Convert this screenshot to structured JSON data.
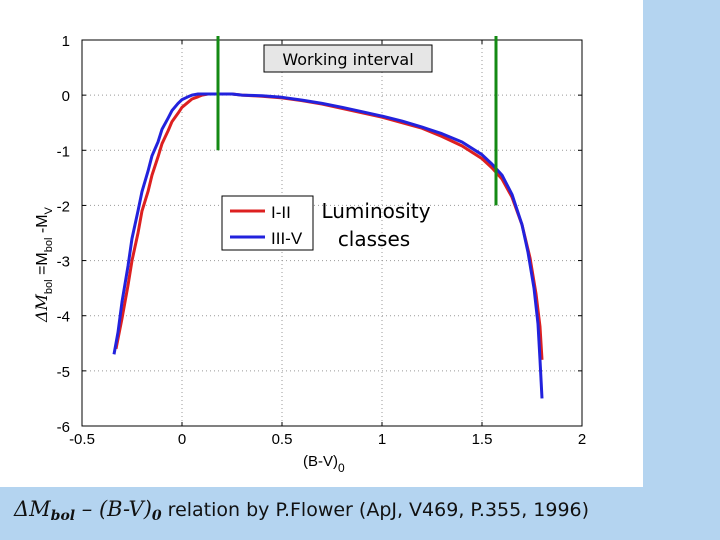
{
  "colors": {
    "background": "#b4d4f0",
    "plot_bg": "#ffffff",
    "series1": "#dd2020",
    "series2": "#2222dd",
    "marker_lines": "#148a14"
  },
  "caption": {
    "delta_m": "ΔM",
    "bol_sub": "bol",
    "dash_bv": " – (B-V)",
    "zero_sub": "0",
    "rest": "relation by P.Flower (ApJ, V469, P.355, 1996)"
  },
  "chart_data": {
    "type": "line",
    "ylabel_parts": {
      "delta": "ΔM",
      "bol1": "bol",
      "eq": " =M",
      "bol2": "bol",
      "minus": " -M",
      "v": "V"
    },
    "xlabel_parts": {
      "main": "(B-V)",
      "sub": "0"
    },
    "xlim": [
      -0.5,
      2
    ],
    "ylim": [
      -6,
      1
    ],
    "xticks": [
      -0.5,
      0,
      0.5,
      1,
      1.5,
      2
    ],
    "xtick_labels": [
      "-0.5",
      "0",
      "0.5",
      "1",
      "1.5",
      "2"
    ],
    "yticks": [
      1,
      0,
      -1,
      -2,
      -3,
      -4,
      -5,
      -6
    ],
    "ytick_labels": [
      "1",
      "0",
      "-1",
      "-2",
      "-3",
      "-4",
      "-5",
      "-6"
    ],
    "grid": "dotted",
    "annotations": {
      "working_interval": "Working interval",
      "luminosity1": "Luminosity",
      "luminosity2": "classes"
    },
    "vertical_lines": [
      {
        "x": 0.18,
        "y_from": -1,
        "y_to": 1
      },
      {
        "x": 1.57,
        "y_from": -2,
        "y_to": 1
      }
    ],
    "series": [
      {
        "name": "I-II",
        "color": "#dd2020",
        "x": [
          -0.33,
          -0.3,
          -0.27,
          -0.25,
          -0.22,
          -0.2,
          -0.17,
          -0.15,
          -0.12,
          -0.1,
          -0.07,
          -0.05,
          -0.02,
          0,
          0.03,
          0.05,
          0.08,
          0.1,
          0.13,
          0.15,
          0.18,
          0.2,
          0.25,
          0.3,
          0.4,
          0.5,
          0.6,
          0.7,
          0.8,
          0.9,
          1.0,
          1.1,
          1.2,
          1.3,
          1.4,
          1.5,
          1.55,
          1.6,
          1.65,
          1.7,
          1.74,
          1.77,
          1.79,
          1.8
        ],
        "y": [
          -4.6,
          -4.05,
          -3.45,
          -3.0,
          -2.5,
          -2.1,
          -1.75,
          -1.45,
          -1.12,
          -0.88,
          -0.65,
          -0.48,
          -0.33,
          -0.22,
          -0.13,
          -0.07,
          -0.03,
          0.0,
          0.02,
          0.02,
          0.02,
          0.02,
          0.02,
          0.0,
          -0.02,
          -0.05,
          -0.1,
          -0.16,
          -0.24,
          -0.32,
          -0.4,
          -0.5,
          -0.6,
          -0.75,
          -0.92,
          -1.15,
          -1.32,
          -1.52,
          -1.85,
          -2.35,
          -2.95,
          -3.6,
          -4.2,
          -4.8
        ]
      },
      {
        "name": "III-V",
        "color": "#2222dd",
        "x": [
          -0.34,
          -0.32,
          -0.3,
          -0.27,
          -0.25,
          -0.22,
          -0.2,
          -0.17,
          -0.15,
          -0.12,
          -0.1,
          -0.07,
          -0.05,
          -0.02,
          0,
          0.03,
          0.05,
          0.08,
          0.1,
          0.13,
          0.15,
          0.18,
          0.2,
          0.25,
          0.3,
          0.4,
          0.5,
          0.6,
          0.7,
          0.8,
          0.9,
          1.0,
          1.1,
          1.2,
          1.3,
          1.4,
          1.5,
          1.55,
          1.6,
          1.65,
          1.7,
          1.73,
          1.76,
          1.78,
          1.79,
          1.8
        ],
        "y": [
          -4.7,
          -4.3,
          -3.75,
          -3.1,
          -2.6,
          -2.1,
          -1.75,
          -1.38,
          -1.1,
          -0.85,
          -0.62,
          -0.42,
          -0.28,
          -0.15,
          -0.08,
          -0.03,
          0.0,
          0.02,
          0.02,
          0.02,
          0.02,
          0.02,
          0.02,
          0.02,
          0.0,
          -0.01,
          -0.04,
          -0.09,
          -0.15,
          -0.22,
          -0.3,
          -0.38,
          -0.47,
          -0.58,
          -0.7,
          -0.85,
          -1.08,
          -1.25,
          -1.45,
          -1.8,
          -2.35,
          -2.85,
          -3.5,
          -4.15,
          -4.8,
          -5.5
        ]
      }
    ]
  }
}
